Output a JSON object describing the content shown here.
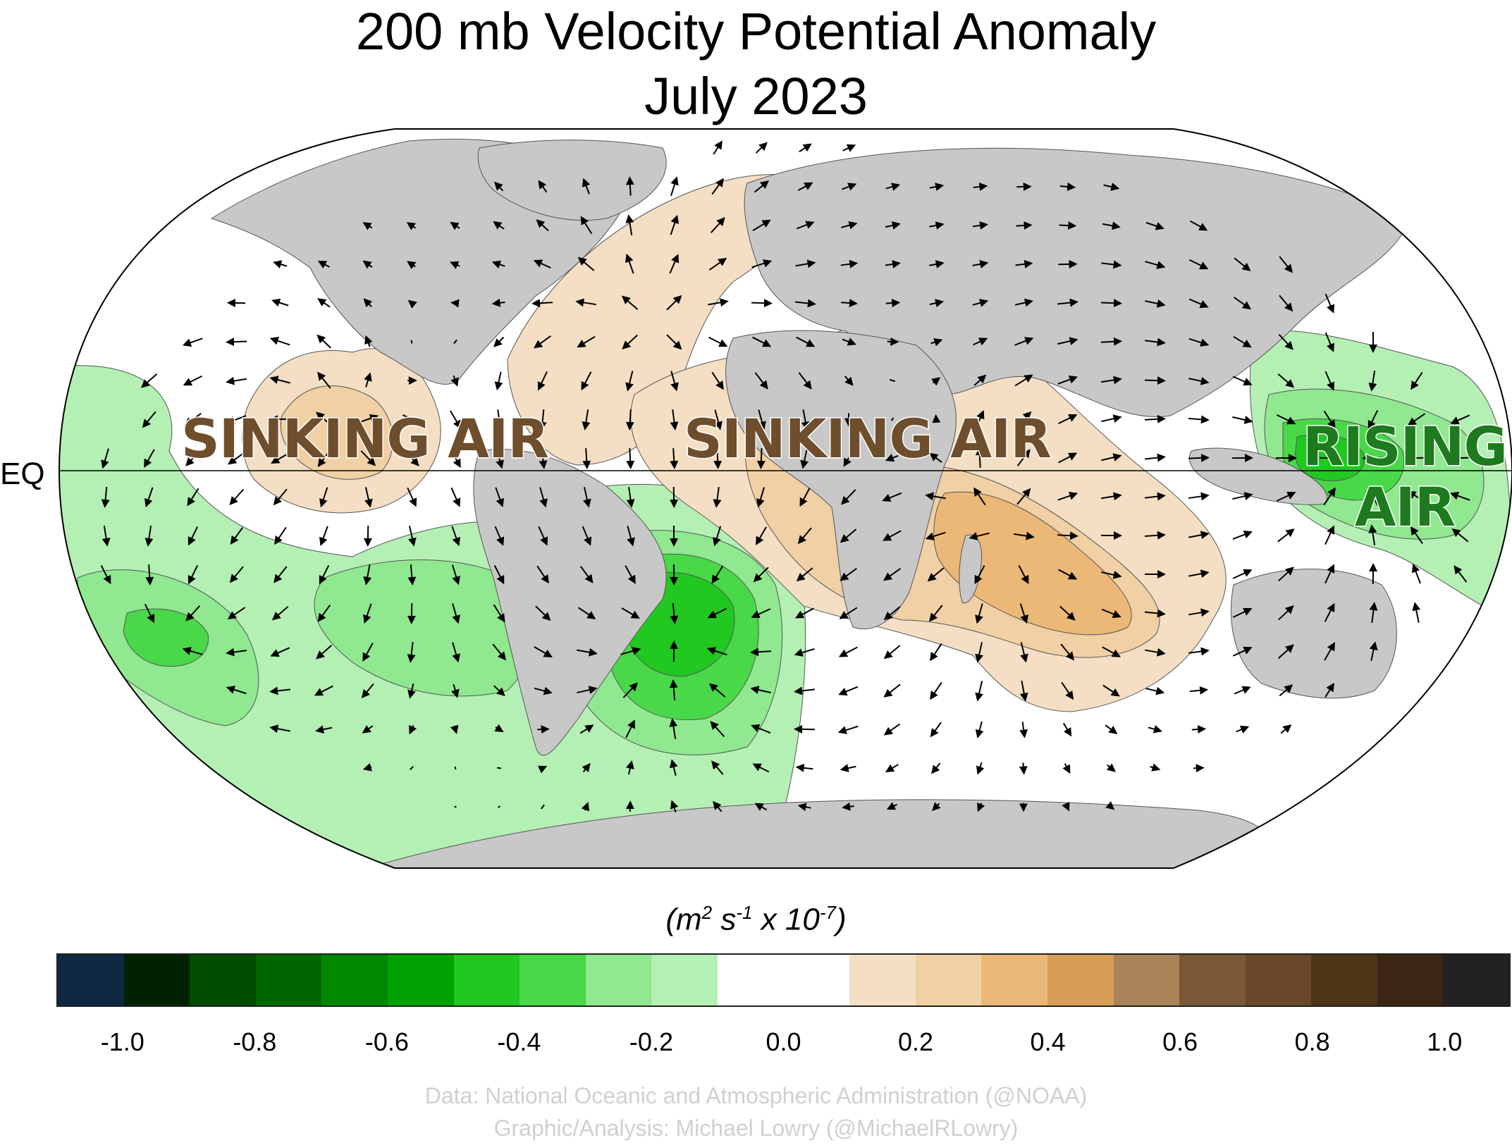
{
  "title_line1": "200 mb Velocity Potential Anomaly",
  "title_line2": "July 2023",
  "equator_label": "EQ",
  "annotations": {
    "sinking_air_1": "SINKING AIR",
    "sinking_air_2": "SINKING AIR",
    "rising_air_line1": "RISING",
    "rising_air_line2": "AIR"
  },
  "colorbar": {
    "units_prefix": "(m",
    "units_exp1": "2",
    "units_mid": " s",
    "units_exp2": "-1",
    "units_mid2": " x 10",
    "units_exp3": "-7",
    "units_suffix": ")",
    "colors": [
      "#0d2840",
      "#012200",
      "#004d00",
      "#006700",
      "#008800",
      "#00a000",
      "#20c820",
      "#48d848",
      "#90e890",
      "#b4f0b4",
      "#ffffff",
      "#ffffff",
      "#f4dfc4",
      "#f0d0a4",
      "#ebb878",
      "#d89e58",
      "#a88458",
      "#7a5836",
      "#684828",
      "#503418",
      "#3a2612",
      "#222222"
    ],
    "tick_labels": [
      "-1.0",
      "-0.8",
      "-0.6",
      "-0.4",
      "-0.2",
      "0.0",
      "0.2",
      "0.4",
      "0.6",
      "0.8",
      "1.0"
    ]
  },
  "credits": {
    "line1": "Data: National Oceanic and Atmospheric Administration (@NOAA)",
    "line2": "Graphic/Analysis: Michael Lowry (@MichaelRLowry)"
  },
  "map_colors": {
    "land": "#c8c8c8",
    "ocean_neutral": "#ffffff",
    "rising_light": "#b4f0b4",
    "rising_mid": "#90e890",
    "rising_strong": "#48d848",
    "rising_core": "#20c820",
    "sinking_light": "#f4dfc4",
    "sinking_mid": "#f0d0a4",
    "sinking_strong": "#ebb878"
  }
}
